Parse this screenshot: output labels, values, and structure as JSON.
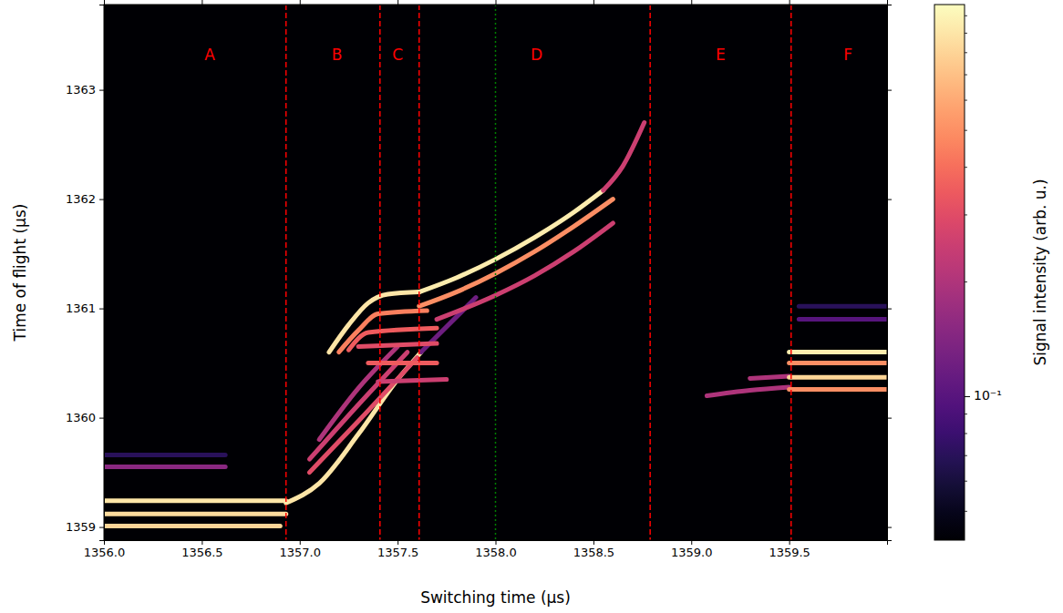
{
  "chart_data": {
    "type": "line",
    "x_label": "Switching time (μs)",
    "y_label": "Time of flight (μs)",
    "xlim": [
      1356.0,
      1360.0
    ],
    "xticks": [
      {
        "value": 1356.0,
        "label": "1356.0"
      },
      {
        "value": 1356.5,
        "label": "1356.5"
      },
      {
        "value": 1357.0,
        "label": "1357.0"
      },
      {
        "value": 1357.5,
        "label": "1357.5"
      },
      {
        "value": 1358.0,
        "label": "1358.0"
      },
      {
        "value": 1358.5,
        "label": "1358.5"
      },
      {
        "value": 1359.0,
        "label": "1359.0"
      },
      {
        "value": 1359.5,
        "label": "1359.5"
      }
    ],
    "ylim": [
      1358.88,
      1363.78
    ],
    "yticks": [
      1359,
      1360,
      1361,
      1362,
      1363
    ],
    "colorbar": {
      "label": "Signal intensity (arb. u.)",
      "color": "magma",
      "log": true,
      "lim": [
        0.042,
        1.07
      ],
      "ticks": [
        {
          "value": 0.1,
          "label": "10⁻¹"
        }
      ],
      "minor_ticks": [
        0.05,
        0.06,
        0.07,
        0.08,
        0.09,
        0.2,
        0.3,
        0.4,
        0.5,
        0.6,
        0.7,
        0.8,
        0.9,
        1
      ]
    },
    "vlines": [
      {
        "x": 1356.93,
        "color": "red",
        "line_style": "dashed"
      },
      {
        "x": 1357.41,
        "color": "red",
        "line_style": "dashed"
      },
      {
        "x": 1357.61,
        "color": "red",
        "line_style": "dashed"
      },
      {
        "x": 1358.0,
        "color": "green",
        "line_style": "dotted"
      },
      {
        "x": 1358.79,
        "color": "red",
        "line_style": "dashed"
      },
      {
        "x": 1359.51,
        "color": "red",
        "line_style": "dashed"
      }
    ],
    "regions": [
      {
        "label": "A",
        "x": 1356.54,
        "y": 1363.31
      },
      {
        "label": "B",
        "x": 1357.19,
        "y": 1363.31
      },
      {
        "label": "C",
        "x": 1357.5,
        "y": 1363.31
      },
      {
        "label": "D",
        "x": 1358.21,
        "y": 1363.31
      },
      {
        "label": "E",
        "x": 1359.15,
        "y": 1363.31
      },
      {
        "label": "F",
        "x": 1359.8,
        "y": 1363.31
      }
    ],
    "series": [
      {
        "x": [
          1356.0,
          1356.93
        ],
        "values": [
          1359.24,
          1359.24
        ],
        "intensity": 0.9
      },
      {
        "x": [
          1356.0,
          1356.93
        ],
        "values": [
          1359.12,
          1359.12
        ],
        "intensity": 0.85
      },
      {
        "x": [
          1356.0,
          1356.9
        ],
        "values": [
          1359.01,
          1359.01
        ],
        "intensity": 0.8
      },
      {
        "x": [
          1356.0,
          1356.62
        ],
        "values": [
          1359.55,
          1359.55
        ],
        "intensity": 0.15
      },
      {
        "x": [
          1356.0,
          1356.62
        ],
        "values": [
          1359.66,
          1359.66
        ],
        "intensity": 0.07
      },
      {
        "x": [
          1356.93,
          1357.1,
          1357.3,
          1357.5,
          1357.62
        ],
        "values": [
          1359.22,
          1359.4,
          1359.85,
          1360.35,
          1360.6
        ],
        "intensity": 0.9
      },
      {
        "x": [
          1357.62,
          1357.9
        ],
        "values": [
          1360.6,
          1361.1
        ],
        "intensity": 0.12
      },
      {
        "x": [
          1357.05,
          1357.3,
          1357.6
        ],
        "values": [
          1359.5,
          1359.97,
          1360.55
        ],
        "intensity": 0.3
      },
      {
        "x": [
          1357.05,
          1357.3,
          1357.55
        ],
        "values": [
          1359.62,
          1360.12,
          1360.6
        ],
        "intensity": 0.25
      },
      {
        "x": [
          1357.1,
          1357.3,
          1357.5
        ],
        "values": [
          1359.8,
          1360.27,
          1360.65
        ],
        "intensity": 0.2
      },
      {
        "x": [
          1357.15,
          1357.25,
          1357.35,
          1357.45,
          1357.61
        ],
        "values": [
          1360.6,
          1360.85,
          1361.05,
          1361.13,
          1361.15
        ],
        "intensity": 0.9
      },
      {
        "x": [
          1357.2,
          1357.3,
          1357.4,
          1357.65
        ],
        "values": [
          1360.6,
          1360.8,
          1360.95,
          1360.98
        ],
        "intensity": 0.45
      },
      {
        "x": [
          1357.25,
          1357.35,
          1357.7
        ],
        "values": [
          1360.62,
          1360.78,
          1360.82
        ],
        "intensity": 0.35
      },
      {
        "x": [
          1357.3,
          1357.7
        ],
        "values": [
          1360.65,
          1360.68
        ],
        "intensity": 0.3
      },
      {
        "x": [
          1357.35,
          1357.7
        ],
        "values": [
          1360.5,
          1360.5
        ],
        "intensity": 0.35
      },
      {
        "x": [
          1357.4,
          1357.75
        ],
        "values": [
          1360.33,
          1360.35
        ],
        "intensity": 0.25
      },
      {
        "x": [
          1357.61,
          1357.8,
          1358.0,
          1358.2,
          1358.4,
          1358.55
        ],
        "values": [
          1361.15,
          1361.28,
          1361.45,
          1361.65,
          1361.88,
          1362.08
        ],
        "intensity": 0.95
      },
      {
        "x": [
          1358.55,
          1358.65,
          1358.76
        ],
        "values": [
          1362.08,
          1362.3,
          1362.7
        ],
        "intensity": 0.25
      },
      {
        "x": [
          1357.61,
          1357.8,
          1358.0,
          1358.2,
          1358.4,
          1358.6
        ],
        "values": [
          1361.02,
          1361.15,
          1361.32,
          1361.52,
          1361.75,
          1362.0
        ],
        "intensity": 0.5
      },
      {
        "x": [
          1357.7,
          1358.0,
          1358.2,
          1358.4,
          1358.6
        ],
        "values": [
          1360.9,
          1361.12,
          1361.3,
          1361.52,
          1361.78
        ],
        "intensity": 0.25
      },
      {
        "x": [
          1359.08,
          1359.3,
          1359.5
        ],
        "values": [
          1360.2,
          1360.25,
          1360.28
        ],
        "intensity": 0.2
      },
      {
        "x": [
          1359.3,
          1359.5
        ],
        "values": [
          1360.36,
          1360.38
        ],
        "intensity": 0.2
      },
      {
        "x": [
          1359.5,
          1360.0
        ],
        "values": [
          1360.6,
          1360.6
        ],
        "intensity": 0.95
      },
      {
        "x": [
          1359.5,
          1360.0
        ],
        "values": [
          1360.5,
          1360.5
        ],
        "intensity": 0.5
      },
      {
        "x": [
          1359.5,
          1360.0
        ],
        "values": [
          1360.37,
          1360.37
        ],
        "intensity": 0.8
      },
      {
        "x": [
          1359.5,
          1360.0
        ],
        "values": [
          1360.26,
          1360.26
        ],
        "intensity": 0.5
      },
      {
        "x": [
          1359.55,
          1360.0
        ],
        "values": [
          1360.9,
          1360.9
        ],
        "intensity": 0.1
      },
      {
        "x": [
          1359.55,
          1360.0
        ],
        "values": [
          1361.02,
          1361.02
        ],
        "intensity": 0.07
      }
    ]
  }
}
